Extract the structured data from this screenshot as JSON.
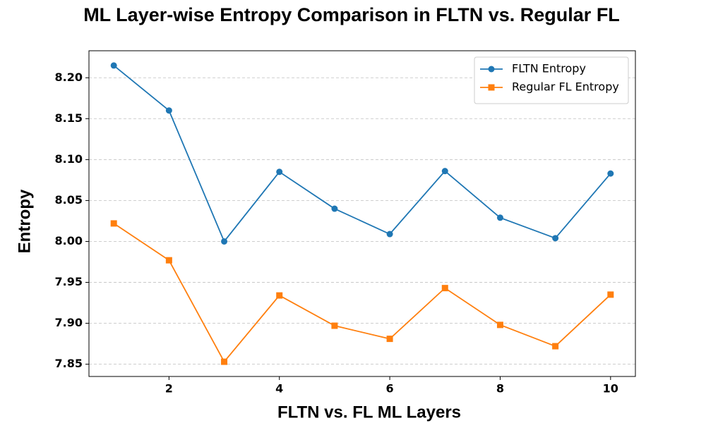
{
  "chart_data": {
    "type": "line",
    "title": "ML Layer-wise Entropy Comparison in FLTN vs. Regular FL",
    "xlabel": "FLTN vs. FL ML Layers",
    "ylabel": "Entropy",
    "x": [
      1,
      2,
      3,
      4,
      5,
      6,
      7,
      8,
      9,
      10
    ],
    "series": [
      {
        "name": "FLTN Entropy",
        "color": "#1f77b4",
        "marker": "circle",
        "values": [
          8.215,
          8.16,
          8.0,
          8.085,
          8.04,
          8.009,
          8.086,
          8.029,
          8.004,
          8.083
        ]
      },
      {
        "name": "Regular FL Entropy",
        "color": "#ff7f0e",
        "marker": "square",
        "values": [
          8.022,
          7.977,
          7.853,
          7.934,
          7.897,
          7.881,
          7.943,
          7.898,
          7.872,
          7.935
        ]
      }
    ],
    "xlim": [
      0.55,
      10.45
    ],
    "xticks": [
      2,
      4,
      6,
      8,
      10
    ],
    "ylim": [
      7.835,
      8.233
    ],
    "yticks": [
      7.85,
      {
        "value": 7.9,
        "label": "7.90"
      },
      7.95,
      {
        "value": 8.0,
        "label": "8.00"
      },
      8.05,
      {
        "value": 8.1,
        "label": "8.10"
      },
      8.15,
      {
        "value": 8.2,
        "label": "8.20"
      }
    ],
    "grid": "y",
    "legend": "upper-right"
  }
}
